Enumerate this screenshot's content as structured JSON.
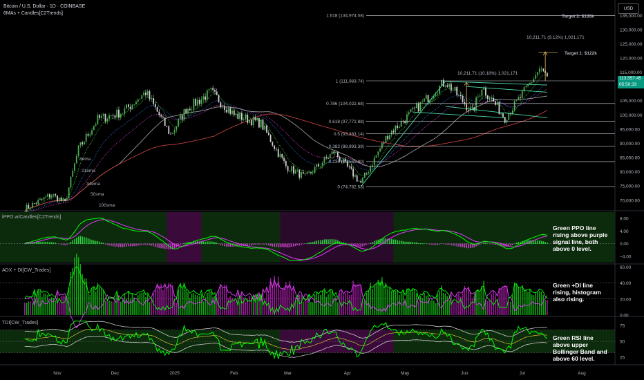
{
  "header": {
    "title": "Bitcoin / U.S. Dollar · 1D · COINBASE",
    "indicator": "6MAs + Candles[C2Trends]",
    "currency": "USD"
  },
  "price_tag": {
    "price": "113,557.45",
    "countdown": "05:50:33"
  },
  "ma_labels": [
    {
      "text": "8ema",
      "color": "#3cd83c"
    },
    {
      "text": "21ema",
      "color": "#2b6fd6"
    },
    {
      "text": "34ema",
      "color": "#d63cd6"
    },
    {
      "text": "50sma",
      "color": "#e6e6e6"
    },
    {
      "text": "100sma",
      "color": "#d6c23c"
    }
  ],
  "panes": {
    "ppo": {
      "title": "iPPO w/Candles[C2Trends]",
      "note": "Green PPO line rising above purple signal line, both above 0 level."
    },
    "adx": {
      "title": "ADX + DI[CW_Trades]",
      "note": "Green +DI line rising, histogram also rising."
    },
    "tdi": {
      "title": "TDI[CW_Trades]",
      "note": "Green RSI line above upper Bollinger Band and above 60 level."
    }
  },
  "colors": {
    "bull": "#4caf50",
    "bear": "#d0d0d0",
    "green": "#00ff00",
    "magenta": "#e040fb",
    "fib": "#d1d4dc",
    "target": "#00e600",
    "arrow": "#f0c060"
  },
  "chart_data": [
    {
      "type": "candlestick",
      "title": "Bitcoin / U.S. Dollar · 1D · COINBASE",
      "x_ticks": [
        "Nov",
        "Dec",
        "2025",
        "Feb",
        "Mar",
        "Apr",
        "May",
        "Jun",
        "Jul",
        "Aug"
      ],
      "y_ticks": [
        70000,
        75000,
        80000,
        85000,
        90000,
        95000,
        100000,
        105000,
        110000,
        115000,
        120000,
        125000,
        130000,
        135000
      ],
      "y_tick_labels": [
        "70,000.00",
        "75,000.00",
        "80,000.00",
        "85,000.00",
        "90,000.00",
        "95,000.00",
        "100,000.00",
        "105,000.00",
        "110,000.00",
        "115,000.00",
        "120,000.00",
        "125,000.00",
        "130,000.00",
        "135,000.00"
      ],
      "ylim": [
        68000,
        137500
      ],
      "price_path": [
        [
          "Oct 15",
          67000
        ],
        [
          "Oct 29",
          72000
        ],
        [
          "Nov 5",
          69000
        ],
        [
          "Nov 12",
          88000
        ],
        [
          "Nov 22",
          98500
        ],
        [
          "Dec 5",
          101000
        ],
        [
          "Dec 17",
          108000
        ],
        [
          "Dec 30",
          93000
        ],
        [
          "Jan 7",
          102000
        ],
        [
          "Jan 20",
          108000
        ],
        [
          "Feb 1",
          100000
        ],
        [
          "Feb 15",
          97000
        ],
        [
          "Feb 28",
          82000
        ],
        [
          "Mar 10",
          78000
        ],
        [
          "Mar 25",
          87000
        ],
        [
          "Apr 8",
          76000
        ],
        [
          "Apr 22",
          93000
        ],
        [
          "May 8",
          103000
        ],
        [
          "May 22",
          111800
        ],
        [
          "Jun 5",
          101000
        ],
        [
          "Jun 10",
          110000
        ],
        [
          "Jun 22",
          99000
        ],
        [
          "Jul 1",
          107000
        ],
        [
          "Jul 10",
          116000
        ],
        [
          "Jul 14",
          113557
        ]
      ],
      "fib_levels": [
        {
          "label": "1.618 (134,974.08)",
          "value": 134974.08
        },
        {
          "label": "1 (111,983.74)",
          "value": 111983.74
        },
        {
          "label": "0.786 (104,022.68)",
          "value": 104022.68
        },
        {
          "label": "0.618 (97,772.88)",
          "value": 97772.88
        },
        {
          "label": "0.5 (93,383.14)",
          "value": 93383.14
        },
        {
          "label": "0.382 (88,993.39)",
          "value": 88993.39
        },
        {
          "label": "0.236 (83,565.80)",
          "value": 83565.8
        },
        {
          "label": "0 (74,782.53)",
          "value": 74782.53
        }
      ],
      "annotations": [
        {
          "text": "10,211.71 (10.18%) 1,021,171"
        },
        {
          "text": "10,211.71 (9.12%) 1,021,171"
        },
        {
          "text": "Target 1: $122k",
          "value": 122000
        },
        {
          "text": "Target 2: $135k",
          "value": 135000
        }
      ],
      "last_price": 113557.45
    },
    {
      "type": "line",
      "title": "iPPO w/Candles[C2Trends]",
      "y_ticks": [
        8.0,
        4.0,
        0.0,
        -4.0
      ],
      "y_tick_labels": [
        "8.00",
        "4.00",
        "0.00",
        "−4.00"
      ],
      "series": [
        {
          "name": "PPO"
        },
        {
          "name": "Signal"
        }
      ]
    },
    {
      "type": "line",
      "title": "ADX + DI[CW_Trades]",
      "y_ticks": [
        60,
        40,
        20,
        0
      ],
      "y_tick_labels": [
        "60.00",
        "40.00",
        "20.00",
        "0.00"
      ]
    },
    {
      "type": "line",
      "title": "TDI[CW_Trades]",
      "y_ticks": [
        75,
        50,
        25
      ],
      "y_tick_labels": [
        "75",
        "50",
        "25"
      ]
    }
  ]
}
